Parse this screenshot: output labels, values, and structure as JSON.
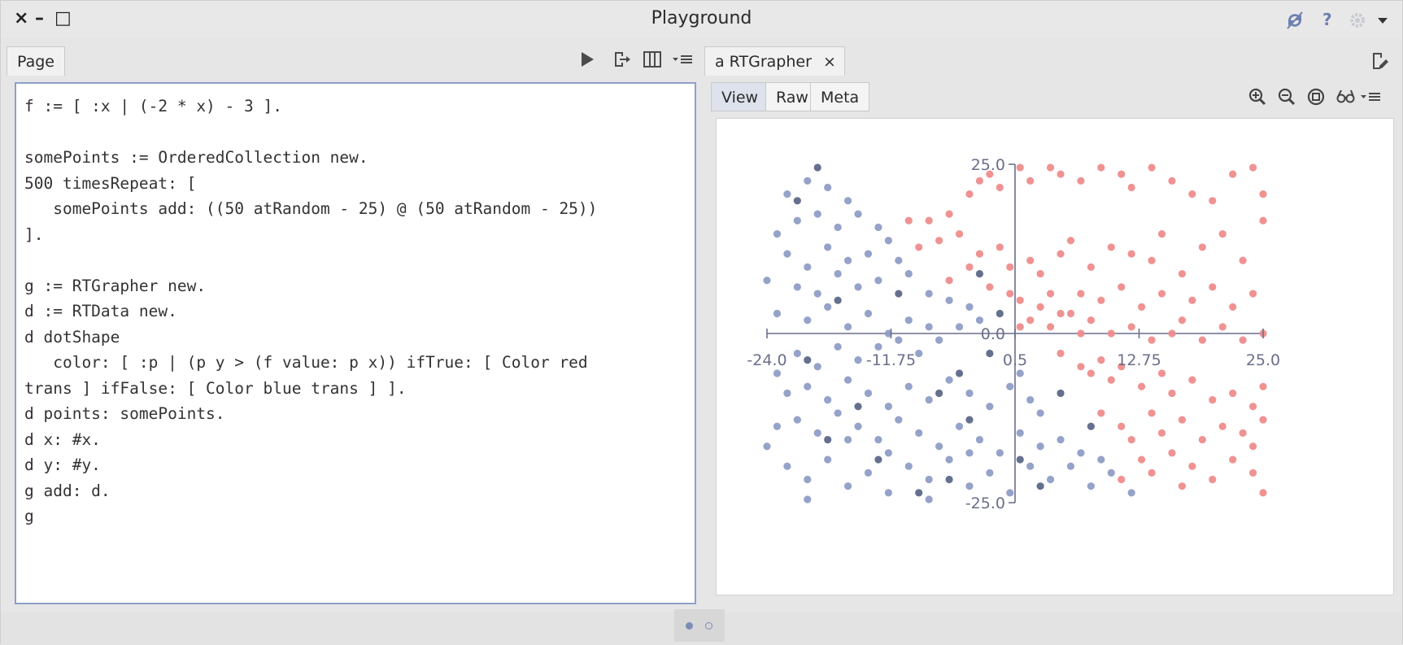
{
  "window": {
    "title": "Playground",
    "controls": {
      "close": "×",
      "minimize": "–",
      "maximize": "□"
    },
    "right_icons": [
      "sync-icon",
      "help-icon",
      "settings-icon",
      "dropdown-icon"
    ],
    "help_label": "?"
  },
  "left_pane": {
    "tab_label": "Page",
    "toolbar": [
      "play-icon",
      "export-icon",
      "columns-icon",
      "menu-icon"
    ],
    "code_lines": [
      "f := [ :x | (-2 * x) - 3 ].",
      "",
      "somePoints := OrderedCollection new.",
      "500 timesRepeat: [",
      "   somePoints add: ((50 atRandom - 25) @ (50 atRandom - 25))",
      "].",
      "",
      "g := RTGrapher new.",
      "d := RTData new.",
      "d dotShape",
      "   color: [ :p | (p y > (f value: p x)) ifTrue: [ Color red",
      "trans ] ifFalse: [ Color blue trans ] ].",
      "d points: somePoints.",
      "d x: #x.",
      "d y: #y.",
      "g add: d.",
      "g"
    ]
  },
  "right_pane": {
    "tab_label": "a RTGrapher",
    "tab_close": "×",
    "subtabs": [
      "View",
      "Raw",
      "Meta"
    ],
    "active_subtab": "View",
    "toolbar": [
      "zoom-in-icon",
      "zoom-out-icon",
      "fit-icon",
      "inspect-icon",
      "menu-icon"
    ]
  },
  "colors": {
    "red_point": "#ef8c8c",
    "blue_point": "#8f9dc6",
    "blue_dark": "#5d6889",
    "axis": "#6a6f8a"
  },
  "chart_data": {
    "type": "scatter",
    "xlim": [
      -24.0,
      25.0
    ],
    "ylim": [
      -25.0,
      25.0
    ],
    "x_ticks": [
      "-24.0",
      "-11.75",
      "0.5",
      "12.75",
      "25.0"
    ],
    "x_tick_values": [
      -24.0,
      -11.75,
      0.5,
      12.75,
      25.0
    ],
    "y_ticks": [
      "25.0",
      "0.0",
      "-25.0"
    ],
    "y_tick_values": [
      25.0,
      0.0,
      -25.0
    ],
    "classifier": "y > -2x - 3",
    "series": [
      {
        "color": "red",
        "points": [
          [
            -10,
            17
          ],
          [
            -8,
            17
          ],
          [
            -6,
            18
          ],
          [
            -4,
            21
          ],
          [
            -3,
            23
          ],
          [
            -2,
            24
          ],
          [
            -1,
            22
          ],
          [
            1,
            25
          ],
          [
            2,
            23
          ],
          [
            4,
            25
          ],
          [
            5,
            24
          ],
          [
            7,
            23
          ],
          [
            9,
            25
          ],
          [
            11,
            24
          ],
          [
            12,
            22
          ],
          [
            14,
            25
          ],
          [
            16,
            23
          ],
          [
            18,
            21
          ],
          [
            20,
            20
          ],
          [
            22,
            24
          ],
          [
            24,
            25
          ],
          [
            25,
            21
          ],
          [
            -9,
            13
          ],
          [
            -7,
            14
          ],
          [
            -5,
            15
          ],
          [
            -3,
            12
          ],
          [
            -1,
            13
          ],
          [
            0,
            10
          ],
          [
            2,
            11
          ],
          [
            3,
            9
          ],
          [
            5,
            12
          ],
          [
            6,
            14
          ],
          [
            8,
            10
          ],
          [
            10,
            13
          ],
          [
            12,
            12
          ],
          [
            14,
            11
          ],
          [
            15,
            15
          ],
          [
            17,
            9
          ],
          [
            19,
            13
          ],
          [
            21,
            15
          ],
          [
            23,
            11
          ],
          [
            25,
            17
          ],
          [
            -6,
            8
          ],
          [
            -4,
            10
          ],
          [
            -2,
            7
          ],
          [
            0,
            6
          ],
          [
            1,
            5
          ],
          [
            3,
            4
          ],
          [
            4,
            6
          ],
          [
            6,
            3
          ],
          [
            7,
            6
          ],
          [
            9,
            5
          ],
          [
            11,
            7
          ],
          [
            13,
            4
          ],
          [
            15,
            6
          ],
          [
            18,
            5
          ],
          [
            20,
            7
          ],
          [
            22,
            4
          ],
          [
            24,
            6
          ],
          [
            1,
            1
          ],
          [
            2,
            2
          ],
          [
            4,
            1
          ],
          [
            5,
            3
          ],
          [
            7,
            0
          ],
          [
            8,
            2
          ],
          [
            10,
            0
          ],
          [
            12,
            1
          ],
          [
            14,
            -1
          ],
          [
            16,
            0
          ],
          [
            17,
            2
          ],
          [
            19,
            -1
          ],
          [
            21,
            1
          ],
          [
            23,
            -1
          ],
          [
            25,
            0
          ],
          [
            5,
            -3
          ],
          [
            7,
            -5
          ],
          [
            8,
            -6
          ],
          [
            9,
            -4
          ],
          [
            10,
            -7
          ],
          [
            11,
            -5
          ],
          [
            13,
            -8
          ],
          [
            15,
            -6
          ],
          [
            16,
            -9
          ],
          [
            18,
            -7
          ],
          [
            20,
            -10
          ],
          [
            22,
            -9
          ],
          [
            24,
            -11
          ],
          [
            25,
            -8
          ],
          [
            9,
            -12
          ],
          [
            11,
            -14
          ],
          [
            12,
            -16
          ],
          [
            14,
            -12
          ],
          [
            15,
            -15
          ],
          [
            17,
            -13
          ],
          [
            19,
            -16
          ],
          [
            21,
            -14
          ],
          [
            23,
            -15
          ],
          [
            24,
            -17
          ],
          [
            25,
            -13
          ],
          [
            13,
            -19
          ],
          [
            14,
            -21
          ],
          [
            16,
            -18
          ],
          [
            18,
            -20
          ],
          [
            20,
            -22
          ],
          [
            22,
            -19
          ],
          [
            24,
            -21
          ],
          [
            25,
            -24
          ],
          [
            11,
            -22
          ],
          [
            17,
            -23
          ]
        ]
      },
      {
        "color": "blue",
        "points": [
          [
            -22,
            21
          ],
          [
            -20,
            23
          ],
          [
            -18,
            22
          ],
          [
            -16,
            20
          ],
          [
            -21,
            17
          ],
          [
            -19,
            18
          ],
          [
            -23,
            15
          ],
          [
            -17,
            16
          ],
          [
            -15,
            18
          ],
          [
            -13,
            16
          ],
          [
            -22,
            12
          ],
          [
            -20,
            10
          ],
          [
            -18,
            13
          ],
          [
            -16,
            11
          ],
          [
            -14,
            12
          ],
          [
            -12,
            14
          ],
          [
            -11,
            11
          ],
          [
            -24,
            8
          ],
          [
            -21,
            7
          ],
          [
            -19,
            6
          ],
          [
            -17,
            9
          ],
          [
            -15,
            7
          ],
          [
            -13,
            8
          ],
          [
            -10,
            9
          ],
          [
            -8,
            6
          ],
          [
            -6,
            5
          ],
          [
            -4,
            4
          ],
          [
            -3,
            2
          ],
          [
            -5,
            1
          ],
          [
            -23,
            3
          ],
          [
            -20,
            2
          ],
          [
            -18,
            4
          ],
          [
            -16,
            1
          ],
          [
            -14,
            3
          ],
          [
            -12,
            0
          ],
          [
            -10,
            2
          ],
          [
            -8,
            1
          ],
          [
            -7,
            -1
          ],
          [
            -9,
            -3
          ],
          [
            -11,
            -1
          ],
          [
            -13,
            -2
          ],
          [
            -15,
            -4
          ],
          [
            -17,
            -2
          ],
          [
            -19,
            -5
          ],
          [
            -21,
            -3
          ],
          [
            -23,
            -6
          ],
          [
            -22,
            -9
          ],
          [
            -20,
            -8
          ],
          [
            -18,
            -10
          ],
          [
            -16,
            -7
          ],
          [
            -14,
            -9
          ],
          [
            -12,
            -11
          ],
          [
            -10,
            -8
          ],
          [
            -8,
            -10
          ],
          [
            -6,
            -7
          ],
          [
            -4,
            -9
          ],
          [
            -2,
            -11
          ],
          [
            0,
            -8
          ],
          [
            1,
            -6
          ],
          [
            2,
            -10
          ],
          [
            3,
            -12
          ],
          [
            -23,
            -14
          ],
          [
            -21,
            -13
          ],
          [
            -19,
            -15
          ],
          [
            -17,
            -12
          ],
          [
            -15,
            -14
          ],
          [
            -13,
            -16
          ],
          [
            -11,
            -13
          ],
          [
            -9,
            -15
          ],
          [
            -7,
            -17
          ],
          [
            -5,
            -14
          ],
          [
            -3,
            -16
          ],
          [
            -1,
            -18
          ],
          [
            1,
            -15
          ],
          [
            3,
            -17
          ],
          [
            5,
            -16
          ],
          [
            7,
            -18
          ],
          [
            -22,
            -20
          ],
          [
            -20,
            -22
          ],
          [
            -18,
            -19
          ],
          [
            -16,
            -23
          ],
          [
            -14,
            -21
          ],
          [
            -12,
            -24
          ],
          [
            -10,
            -20
          ],
          [
            -8,
            -22
          ],
          [
            -6,
            -19
          ],
          [
            -4,
            -23
          ],
          [
            -2,
            -21
          ],
          [
            0,
            -24
          ],
          [
            4,
            -22
          ],
          [
            6,
            -20
          ],
          [
            8,
            -23
          ],
          [
            10,
            -21
          ],
          [
            12,
            -24
          ],
          [
            -24,
            -17
          ],
          [
            -20,
            -25
          ],
          [
            -16,
            -16
          ],
          [
            -12,
            -18
          ],
          [
            -8,
            -25
          ],
          [
            -4,
            -18
          ],
          [
            2,
            -20
          ],
          [
            9,
            -19
          ]
        ]
      },
      {
        "color": "blue-dark",
        "points": [
          [
            -19,
            25
          ],
          [
            -21,
            20
          ],
          [
            -17,
            5
          ],
          [
            -20,
            -4
          ],
          [
            -15,
            -11
          ],
          [
            -13,
            -19
          ],
          [
            -6,
            -22
          ],
          [
            -4,
            -13
          ],
          [
            -2,
            -3
          ],
          [
            -1,
            3
          ],
          [
            -3,
            9
          ],
          [
            -5,
            -6
          ],
          [
            -18,
            -16
          ],
          [
            -9,
            -24
          ],
          [
            -7,
            -9
          ],
          [
            -11,
            6
          ],
          [
            1,
            -19
          ],
          [
            3,
            -23
          ],
          [
            5,
            -9
          ],
          [
            8,
            -14
          ]
        ]
      }
    ]
  }
}
